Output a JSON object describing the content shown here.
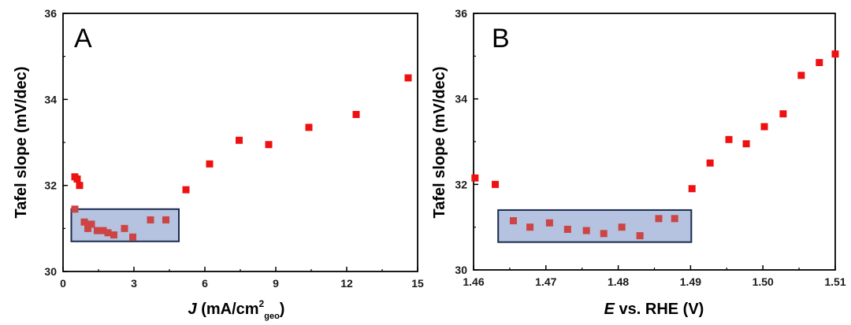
{
  "chart_data": [
    {
      "type": "scatter",
      "panel_label": "A",
      "xlabel": {
        "italic": "J",
        "text": " (mA/cm",
        "sup": "2",
        "sub": "geo",
        "close": ")"
      },
      "ylabel": "Tafel slope (mV/dec)",
      "xlim": [
        0,
        15
      ],
      "ylim": [
        30,
        36
      ],
      "xticks": [
        0,
        3,
        6,
        9,
        12,
        15
      ],
      "xtick_labels": [
        "0",
        "3",
        "6",
        "9",
        "12",
        "15"
      ],
      "yticks": [
        30,
        32,
        34,
        36
      ],
      "ytick_labels": [
        "30",
        "32",
        "34",
        "36"
      ],
      "highlight_box": {
        "x": [
          0.35,
          4.9
        ],
        "y": [
          30.7,
          31.45
        ]
      },
      "marker_color": "#ee1111",
      "marker_color_in_box": "#cc4444",
      "box_fill": "#b5c2e0",
      "box_stroke": "#1a2a50",
      "points": [
        {
          "x": 0.5,
          "y": 32.2
        },
        {
          "x": 0.6,
          "y": 32.15
        },
        {
          "x": 0.7,
          "y": 32.0
        },
        {
          "x": 0.5,
          "y": 31.45
        },
        {
          "x": 0.9,
          "y": 31.15
        },
        {
          "x": 1.05,
          "y": 31.0
        },
        {
          "x": 1.2,
          "y": 31.1
        },
        {
          "x": 1.45,
          "y": 30.95
        },
        {
          "x": 1.7,
          "y": 30.95
        },
        {
          "x": 1.9,
          "y": 30.9
        },
        {
          "x": 2.15,
          "y": 30.85
        },
        {
          "x": 2.6,
          "y": 31.0
        },
        {
          "x": 2.95,
          "y": 30.8
        },
        {
          "x": 3.7,
          "y": 31.2
        },
        {
          "x": 4.35,
          "y": 31.2
        },
        {
          "x": 5.2,
          "y": 31.9
        },
        {
          "x": 6.2,
          "y": 32.5
        },
        {
          "x": 7.45,
          "y": 33.05
        },
        {
          "x": 8.7,
          "y": 32.95
        },
        {
          "x": 10.4,
          "y": 33.35
        },
        {
          "x": 12.4,
          "y": 33.65
        },
        {
          "x": 14.6,
          "y": 34.5
        }
      ]
    },
    {
      "type": "scatter",
      "panel_label": "B",
      "xlabel": {
        "italic": "E",
        "text": " vs. RHE (V)"
      },
      "ylabel": "Tafel slope (mV/dec)",
      "xlim": [
        1.46,
        1.51
      ],
      "ylim": [
        30,
        36
      ],
      "xticks": [
        1.46,
        1.47,
        1.48,
        1.49,
        1.5,
        1.51
      ],
      "xtick_labels": [
        "1.46",
        "1.47",
        "1.48",
        "1.49",
        "1.50",
        "1.51"
      ],
      "yticks": [
        30,
        32,
        34,
        36
      ],
      "ytick_labels": [
        "30",
        "32",
        "34",
        "36"
      ],
      "highlight_box": {
        "x": [
          1.4634,
          1.4901
        ],
        "y": [
          30.65,
          31.4
        ]
      },
      "marker_color": "#ee1111",
      "marker_color_in_box": "#cc4444",
      "box_fill": "#b5c2e0",
      "box_stroke": "#1a2a50",
      "points": [
        {
          "x": 1.4602,
          "y": 32.15
        },
        {
          "x": 1.463,
          "y": 32.0
        },
        {
          "x": 1.4655,
          "y": 31.15
        },
        {
          "x": 1.4678,
          "y": 31.0
        },
        {
          "x": 1.4705,
          "y": 31.1
        },
        {
          "x": 1.473,
          "y": 30.95
        },
        {
          "x": 1.4756,
          "y": 30.92
        },
        {
          "x": 1.478,
          "y": 30.85
        },
        {
          "x": 1.4805,
          "y": 31.0
        },
        {
          "x": 1.483,
          "y": 30.8
        },
        {
          "x": 1.4856,
          "y": 31.2
        },
        {
          "x": 1.4878,
          "y": 31.2
        },
        {
          "x": 1.4902,
          "y": 31.9
        },
        {
          "x": 1.4927,
          "y": 32.5
        },
        {
          "x": 1.4953,
          "y": 33.05
        },
        {
          "x": 1.4977,
          "y": 32.95
        },
        {
          "x": 1.5002,
          "y": 33.35
        },
        {
          "x": 1.5028,
          "y": 33.65
        },
        {
          "x": 1.5053,
          "y": 34.55
        },
        {
          "x": 1.5078,
          "y": 34.85
        },
        {
          "x": 1.51,
          "y": 35.05
        }
      ]
    }
  ]
}
